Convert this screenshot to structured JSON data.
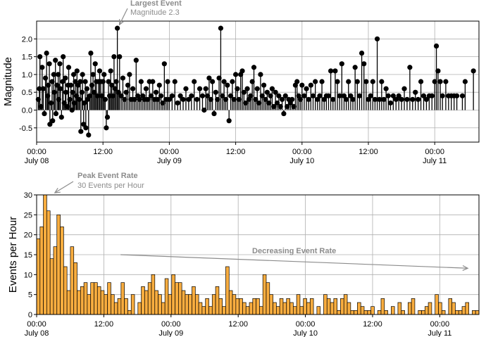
{
  "chart_data": [
    {
      "type": "stem",
      "ylabel": "Magnitude",
      "xlabel": "",
      "ylim": [
        -0.9,
        2.5
      ],
      "yticks": [
        -0.5,
        0.0,
        0.5,
        1.0,
        1.5,
        2.0
      ],
      "ytick_labels": [
        "-0.5",
        "0.0",
        "0.5",
        "1.0",
        "1.5",
        "2.0"
      ],
      "xlim_hours": [
        0,
        80
      ],
      "x_unit": "hours since July 08 00:00",
      "xticks": [
        {
          "hour": 0,
          "time": "00:00",
          "date": "July 08"
        },
        {
          "hour": 12,
          "time": "12:00",
          "date": ""
        },
        {
          "hour": 24,
          "time": "00:00",
          "date": "July 09"
        },
        {
          "hour": 36,
          "time": "12:00",
          "date": ""
        },
        {
          "hour": 48,
          "time": "00:00",
          "date": "July 10"
        },
        {
          "hour": 60,
          "time": "12:00",
          "date": ""
        },
        {
          "hour": 72,
          "time": "00:00",
          "date": "July 11"
        }
      ],
      "grid": true,
      "stem_color": "#000000",
      "marker_color": "#000000",
      "points": [
        [
          0.3,
          0.3
        ],
        [
          0.5,
          0.6
        ],
        [
          0.6,
          1.5
        ],
        [
          0.8,
          0.1
        ],
        [
          1.0,
          1.2
        ],
        [
          1.2,
          0.6
        ],
        [
          1.4,
          -0.1
        ],
        [
          1.6,
          0.9
        ],
        [
          1.8,
          1.6
        ],
        [
          2.0,
          0.4
        ],
        [
          2.1,
          0.7
        ],
        [
          2.3,
          1.3
        ],
        [
          2.4,
          -0.4
        ],
        [
          2.6,
          0.2
        ],
        [
          2.8,
          0.8
        ],
        [
          2.9,
          -0.3
        ],
        [
          3.1,
          1.0
        ],
        [
          3.2,
          0.5
        ],
        [
          3.4,
          1.4
        ],
        [
          3.5,
          -0.1
        ],
        [
          3.7,
          0.7
        ],
        [
          3.9,
          1.0
        ],
        [
          4.0,
          0.3
        ],
        [
          4.2,
          1.3
        ],
        [
          4.3,
          0.6
        ],
        [
          4.5,
          -0.2
        ],
        [
          4.7,
          0.8
        ],
        [
          4.8,
          1.5
        ],
        [
          5.0,
          0.2
        ],
        [
          5.2,
          0.9
        ],
        [
          5.3,
          0.5
        ],
        [
          5.5,
          0.1
        ],
        [
          5.7,
          0.7
        ],
        [
          5.8,
          1.2
        ],
        [
          6.0,
          0.3
        ],
        [
          6.2,
          0.7
        ],
        [
          6.4,
          0.0
        ],
        [
          6.5,
          0.5
        ],
        [
          6.7,
          1.0
        ],
        [
          6.8,
          0.2
        ],
        [
          7.0,
          0.8
        ],
        [
          7.2,
          0.4
        ],
        [
          7.3,
          1.1
        ],
        [
          7.5,
          0.7
        ],
        [
          7.7,
          0.3
        ],
        [
          7.9,
          0.8
        ],
        [
          8.0,
          -0.6
        ],
        [
          8.2,
          0.5
        ],
        [
          8.3,
          1.0
        ],
        [
          8.5,
          -0.4
        ],
        [
          8.6,
          0.2
        ],
        [
          8.8,
          0.8
        ],
        [
          8.9,
          -0.5
        ],
        [
          9.1,
          0.6
        ],
        [
          9.2,
          0.3
        ],
        [
          9.4,
          -0.7
        ],
        [
          9.6,
          0.4
        ],
        [
          9.8,
          1.6
        ],
        [
          10.0,
          0.7
        ],
        [
          10.2,
          1.0
        ],
        [
          10.4,
          0.5
        ],
        [
          10.6,
          1.3
        ],
        [
          10.8,
          0.8
        ],
        [
          11.0,
          0.4
        ],
        [
          11.2,
          0.8
        ],
        [
          11.4,
          1.1
        ],
        [
          11.6,
          0.8
        ],
        [
          11.8,
          0.4
        ],
        [
          12.0,
          0.8
        ],
        [
          12.2,
          1.0
        ],
        [
          12.4,
          0.3
        ],
        [
          12.6,
          -0.5
        ],
        [
          12.8,
          -0.2
        ],
        [
          13.0,
          0.8
        ],
        [
          13.2,
          0.4
        ],
        [
          13.4,
          1.1
        ],
        [
          13.6,
          0.7
        ],
        [
          13.8,
          0.4
        ],
        [
          14.0,
          1.5
        ],
        [
          14.2,
          0.6
        ],
        [
          14.4,
          0.8
        ],
        [
          14.6,
          2.3
        ],
        [
          14.8,
          0.5
        ],
        [
          15.0,
          1.5
        ],
        [
          15.3,
          0.4
        ],
        [
          15.6,
          0.9
        ],
        [
          15.9,
          0.3
        ],
        [
          16.2,
          0.5
        ],
        [
          16.5,
          0.7
        ],
        [
          16.8,
          1.0
        ],
        [
          17.1,
          0.3
        ],
        [
          17.4,
          0.6
        ],
        [
          17.7,
          0.3
        ],
        [
          18.0,
          1.4
        ],
        [
          18.3,
          0.4
        ],
        [
          18.6,
          0.3
        ],
        [
          18.9,
          0.8
        ],
        [
          19.2,
          0.4
        ],
        [
          19.5,
          0.3
        ],
        [
          19.8,
          0.6
        ],
        [
          20.1,
          0.3
        ],
        [
          20.4,
          0.8
        ],
        [
          20.7,
          0.4
        ],
        [
          21.0,
          0.8
        ],
        [
          21.3,
          0.3
        ],
        [
          21.6,
          0.5
        ],
        [
          21.9,
          0.3
        ],
        [
          22.2,
          0.7
        ],
        [
          22.5,
          0.4
        ],
        [
          22.8,
          0.2
        ],
        [
          23.1,
          1.3
        ],
        [
          23.4,
          0.3
        ],
        [
          23.7,
          0.8
        ],
        [
          24.0,
          0.3
        ],
        [
          24.5,
          0.4
        ],
        [
          25.0,
          0.8
        ],
        [
          25.5,
          0.2
        ],
        [
          26.0,
          0.4
        ],
        [
          26.5,
          0.3
        ],
        [
          27.0,
          0.6
        ],
        [
          27.5,
          0.3
        ],
        [
          28.0,
          0.4
        ],
        [
          28.5,
          0.8
        ],
        [
          29.0,
          0.3
        ],
        [
          29.5,
          0.6
        ],
        [
          30.0,
          0.4
        ],
        [
          30.3,
          0.0
        ],
        [
          30.6,
          0.6
        ],
        [
          30.9,
          0.4
        ],
        [
          31.2,
          0.9
        ],
        [
          31.5,
          0.3
        ],
        [
          31.8,
          0.8
        ],
        [
          32.1,
          -0.1
        ],
        [
          32.4,
          0.5
        ],
        [
          32.7,
          0.3
        ],
        [
          33.0,
          0.9
        ],
        [
          33.3,
          2.3
        ],
        [
          33.6,
          0.4
        ],
        [
          33.9,
          0.8
        ],
        [
          34.2,
          0.3
        ],
        [
          34.5,
          0.7
        ],
        [
          34.8,
          -0.3
        ],
        [
          35.1,
          0.4
        ],
        [
          35.4,
          0.8
        ],
        [
          35.7,
          0.3
        ],
        [
          36.0,
          1.0
        ],
        [
          36.3,
          0.6
        ],
        [
          36.6,
          0.3
        ],
        [
          36.9,
          1.0
        ],
        [
          37.2,
          1.1
        ],
        [
          37.5,
          0.5
        ],
        [
          37.8,
          0.2
        ],
        [
          38.1,
          0.6
        ],
        [
          38.4,
          0.3
        ],
        [
          38.7,
          0.4
        ],
        [
          39.0,
          0.8
        ],
        [
          39.3,
          1.2
        ],
        [
          39.6,
          0.3
        ],
        [
          39.9,
          0.6
        ],
        [
          40.2,
          0.2
        ],
        [
          40.5,
          1.0
        ],
        [
          40.8,
          0.4
        ],
        [
          41.1,
          0.7
        ],
        [
          41.4,
          0.3
        ],
        [
          41.7,
          0.5
        ],
        [
          42.0,
          0.2
        ],
        [
          42.3,
          0.4
        ],
        [
          42.6,
          0.6
        ],
        [
          42.9,
          0.1
        ],
        [
          43.2,
          0.5
        ],
        [
          43.5,
          0.2
        ],
        [
          43.8,
          0.4
        ],
        [
          44.1,
          0.1
        ],
        [
          44.4,
          0.3
        ],
        [
          44.7,
          -0.1
        ],
        [
          45.0,
          0.4
        ],
        [
          45.3,
          0.1
        ],
        [
          45.6,
          0.3
        ],
        [
          45.9,
          0.2
        ],
        [
          46.2,
          0.3
        ],
        [
          46.5,
          0.1
        ],
        [
          46.8,
          0.7
        ],
        [
          47.1,
          0.8
        ],
        [
          47.4,
          0.4
        ],
        [
          47.7,
          0.3
        ],
        [
          48.0,
          0.7
        ],
        [
          48.4,
          0.4
        ],
        [
          48.8,
          0.6
        ],
        [
          49.2,
          0.3
        ],
        [
          49.6,
          0.7
        ],
        [
          50.0,
          0.4
        ],
        [
          50.4,
          0.8
        ],
        [
          50.8,
          0.3
        ],
        [
          51.2,
          0.4
        ],
        [
          51.6,
          0.8
        ],
        [
          52.0,
          0.3
        ],
        [
          52.4,
          0.4
        ],
        [
          52.8,
          0.4
        ],
        [
          53.2,
          1.1
        ],
        [
          53.6,
          0.3
        ],
        [
          54.0,
          1.1
        ],
        [
          54.4,
          0.8
        ],
        [
          54.8,
          0.4
        ],
        [
          55.2,
          1.3
        ],
        [
          55.6,
          0.4
        ],
        [
          56.0,
          0.3
        ],
        [
          56.4,
          0.8
        ],
        [
          56.8,
          0.4
        ],
        [
          57.2,
          0.3
        ],
        [
          57.6,
          1.2
        ],
        [
          58.0,
          0.8
        ],
        [
          58.4,
          0.4
        ],
        [
          58.8,
          1.6
        ],
        [
          59.2,
          1.3
        ],
        [
          59.6,
          0.8
        ],
        [
          60.0,
          0.3
        ],
        [
          60.4,
          0.4
        ],
        [
          60.8,
          0.8
        ],
        [
          61.2,
          0.3
        ],
        [
          61.6,
          2.0
        ],
        [
          62.0,
          0.3
        ],
        [
          62.4,
          0.8
        ],
        [
          62.8,
          0.3
        ],
        [
          63.2,
          0.6
        ],
        [
          63.6,
          0.4
        ],
        [
          64.0,
          0.2
        ],
        [
          64.5,
          0.4
        ],
        [
          65.0,
          0.3
        ],
        [
          65.5,
          0.4
        ],
        [
          66.0,
          0.3
        ],
        [
          66.5,
          0.6
        ],
        [
          67.0,
          0.3
        ],
        [
          67.5,
          1.2
        ],
        [
          68.0,
          0.3
        ],
        [
          68.5,
          0.5
        ],
        [
          69.0,
          0.3
        ],
        [
          69.5,
          0.8
        ],
        [
          70.0,
          0.4
        ],
        [
          70.5,
          0.3
        ],
        [
          71.0,
          0.4
        ],
        [
          71.5,
          0.4
        ],
        [
          72.0,
          0.8
        ],
        [
          72.3,
          1.8
        ],
        [
          72.6,
          1.1
        ],
        [
          73.0,
          0.8
        ],
        [
          73.4,
          0.4
        ],
        [
          74.0,
          0.8
        ],
        [
          74.5,
          0.4
        ],
        [
          75.0,
          0.4
        ],
        [
          75.5,
          0.4
        ],
        [
          76.0,
          0.4
        ],
        [
          77.0,
          0.4
        ],
        [
          77.5,
          0.8
        ],
        [
          79.0,
          1.1
        ]
      ],
      "annotation": {
        "title": "Largest Event",
        "subtitle": "Magnitude 2.3",
        "x_hour": 14.6,
        "y": 2.3
      }
    },
    {
      "type": "bar",
      "ylabel": "Events per Hour",
      "xlabel": "",
      "ylim": [
        0,
        30
      ],
      "yticks": [
        0,
        5,
        10,
        15,
        20,
        25,
        30
      ],
      "ytick_labels": [
        "0",
        "5",
        "10",
        "15",
        "20",
        "25",
        "30"
      ],
      "xlim_hours": [
        0,
        79
      ],
      "x_unit": "hours since July 08 00:00",
      "xticks": [
        {
          "hour": 0,
          "time": "00:00",
          "date": "July 08"
        },
        {
          "hour": 12,
          "time": "12:00",
          "date": ""
        },
        {
          "hour": 24,
          "time": "00:00",
          "date": "July 09"
        },
        {
          "hour": 36,
          "time": "12:00",
          "date": ""
        },
        {
          "hour": 48,
          "time": "00:00",
          "date": "July 10"
        },
        {
          "hour": 60,
          "time": "12:00",
          "date": ""
        },
        {
          "hour": 72,
          "time": "00:00",
          "date": "July 11"
        }
      ],
      "grid": true,
      "bar_color": "#f9ad3f",
      "edge_color": "#000000",
      "values": [
        19,
        22,
        30,
        26,
        14,
        17,
        25,
        22,
        12,
        6,
        17,
        13,
        6,
        7,
        8,
        5,
        8,
        8,
        7,
        6,
        5,
        8,
        5,
        3,
        4,
        8,
        4,
        1,
        5,
        0,
        3,
        7,
        6,
        8,
        10,
        6,
        5,
        3,
        9,
        5,
        10,
        8,
        8,
        6,
        5,
        5,
        7,
        5,
        3,
        2,
        4,
        2,
        5,
        7,
        4,
        2,
        12,
        6,
        5,
        4,
        4,
        3,
        2,
        3,
        4,
        4,
        2,
        10,
        8,
        5,
        3,
        2,
        4,
        3,
        4,
        3,
        2,
        5,
        2,
        4,
        3,
        4,
        0,
        2,
        0,
        5,
        4,
        3,
        4,
        1,
        4,
        5,
        3,
        1,
        1,
        3,
        2,
        1,
        1,
        2,
        0,
        1,
        4,
        1,
        0,
        2,
        0,
        3,
        1,
        0,
        3,
        4,
        0,
        1,
        1,
        2,
        3,
        0,
        5,
        3,
        1,
        0,
        4,
        3,
        1,
        1,
        2,
        3,
        0,
        1,
        1
      ],
      "annotations": [
        {
          "title": "Peak Event Rate",
          "subtitle": "30 Events per Hour",
          "x_hour": 2.5,
          "y": 30
        },
        {
          "text": "Decreasing Event Rate",
          "from_hour": 15,
          "from_y": 15,
          "to_hour": 77,
          "to_y": 11.6
        }
      ]
    }
  ]
}
